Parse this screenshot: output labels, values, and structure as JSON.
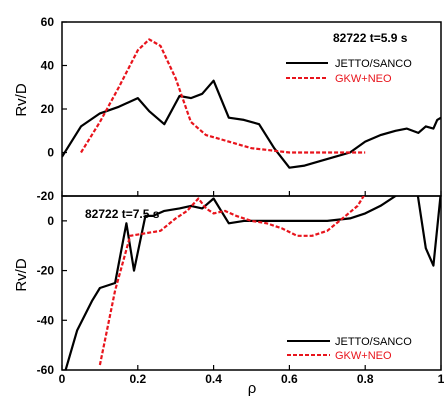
{
  "chart_data": [
    {
      "type": "line",
      "annotation": "82722 t=5.9 s",
      "ylabel": "Rv/D",
      "xlim": [
        0,
        1
      ],
      "ylim": [
        -20,
        60
      ],
      "yticks": [
        -20,
        0,
        20,
        40,
        60
      ],
      "ytick_labels": [
        "-20",
        "0",
        "20",
        "40",
        "60"
      ],
      "grid": false,
      "legend_position": "top-right",
      "series": [
        {
          "name": "JETTO/SANCO",
          "color": "#000000",
          "style": "solid",
          "x": [
            0.0,
            0.05,
            0.1,
            0.15,
            0.2,
            0.23,
            0.27,
            0.31,
            0.34,
            0.37,
            0.4,
            0.44,
            0.48,
            0.52,
            0.56,
            0.6,
            0.64,
            0.68,
            0.72,
            0.76,
            0.8,
            0.84,
            0.88,
            0.91,
            0.94,
            0.96,
            0.98,
            0.99,
            1.0
          ],
          "y": [
            -2,
            12,
            18,
            21,
            25,
            19,
            13,
            26,
            25,
            27,
            33,
            16,
            15,
            13,
            2,
            -7,
            -6,
            -4,
            -2,
            0,
            5,
            8,
            10,
            11,
            9,
            12,
            11,
            15,
            16
          ]
        },
        {
          "name": "GKW+NEO",
          "color": "#e8141c",
          "style": "dashed",
          "x": [
            0.05,
            0.1,
            0.15,
            0.2,
            0.23,
            0.26,
            0.3,
            0.34,
            0.38,
            0.42,
            0.46,
            0.5,
            0.55,
            0.6,
            0.65,
            0.7,
            0.75,
            0.8
          ],
          "y": [
            0,
            14,
            30,
            47,
            52,
            49,
            34,
            14,
            8,
            6,
            4,
            2,
            1,
            0,
            0,
            0,
            0,
            0
          ]
        }
      ]
    },
    {
      "type": "line",
      "annotation": "82722 t=7.5 s",
      "xlabel": "ρ",
      "ylabel": "Rv/D",
      "xlim": [
        0,
        1
      ],
      "ylim": [
        -60,
        10
      ],
      "xticks": [
        0,
        0.2,
        0.4,
        0.6,
        0.8,
        1
      ],
      "xtick_labels": [
        "0",
        "0.2",
        "0.4",
        "0.6",
        "0.8",
        "1"
      ],
      "yticks": [
        -60,
        -40,
        -20,
        0
      ],
      "ytick_labels": [
        "-60",
        "-40",
        "-20",
        "0"
      ],
      "grid": false,
      "legend_position": "bottom-right",
      "series": [
        {
          "name": "JETTO/SANCO",
          "color": "#000000",
          "style": "solid",
          "x": [
            0.0,
            0.04,
            0.08,
            0.1,
            0.14,
            0.17,
            0.19,
            0.22,
            0.24,
            0.27,
            0.31,
            0.34,
            0.37,
            0.4,
            0.42,
            0.44,
            0.48,
            0.52,
            0.58,
            0.64,
            0.7,
            0.76,
            0.8,
            0.84,
            0.88,
            0.91,
            0.93,
            0.96,
            0.98,
            1.0
          ],
          "y": [
            -65,
            -44,
            -32,
            -27,
            -25,
            -1,
            -20,
            2,
            2,
            4,
            5,
            6,
            5,
            9,
            4,
            -1,
            0,
            0,
            0,
            0,
            0,
            1,
            3,
            6,
            10,
            18,
            19,
            -11,
            -18,
            12
          ]
        },
        {
          "name": "GKW+NEO",
          "color": "#e8141c",
          "style": "dashed",
          "x": [
            0.1,
            0.14,
            0.18,
            0.22,
            0.26,
            0.3,
            0.33,
            0.36,
            0.38,
            0.4,
            0.43,
            0.46,
            0.5,
            0.54,
            0.58,
            0.62,
            0.66,
            0.7,
            0.74,
            0.78,
            0.8
          ],
          "y": [
            -58,
            -28,
            -6,
            -5,
            -4,
            1,
            4,
            9,
            5,
            3,
            4,
            2,
            0,
            -1,
            -3,
            -6,
            -6,
            -4,
            1,
            6,
            11
          ]
        }
      ]
    }
  ]
}
